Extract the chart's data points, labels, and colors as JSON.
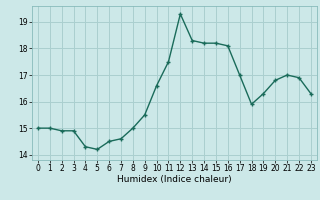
{
  "x": [
    0,
    1,
    2,
    3,
    4,
    5,
    6,
    7,
    8,
    9,
    10,
    11,
    12,
    13,
    14,
    15,
    16,
    17,
    18,
    19,
    20,
    21,
    22,
    23
  ],
  "y": [
    15.0,
    15.0,
    14.9,
    14.9,
    14.3,
    14.2,
    14.5,
    14.6,
    15.0,
    15.5,
    16.6,
    17.5,
    19.3,
    18.3,
    18.2,
    18.2,
    18.1,
    17.0,
    15.9,
    16.3,
    16.8,
    17.0,
    16.9,
    16.3
  ],
  "line_color": "#1a6b5a",
  "marker_color": "#1a6b5a",
  "bg_color": "#cce8e8",
  "grid_color": "#aacfcf",
  "xlabel": "Humidex (Indice chaleur)",
  "xlim": [
    -0.5,
    23.5
  ],
  "ylim": [
    13.8,
    19.6
  ],
  "yticks": [
    14,
    15,
    16,
    17,
    18,
    19
  ],
  "xticks": [
    0,
    1,
    2,
    3,
    4,
    5,
    6,
    7,
    8,
    9,
    10,
    11,
    12,
    13,
    14,
    15,
    16,
    17,
    18,
    19,
    20,
    21,
    22,
    23
  ],
  "tick_fontsize": 5.5,
  "xlabel_fontsize": 6.5,
  "marker_size": 3,
  "line_width": 1.0
}
